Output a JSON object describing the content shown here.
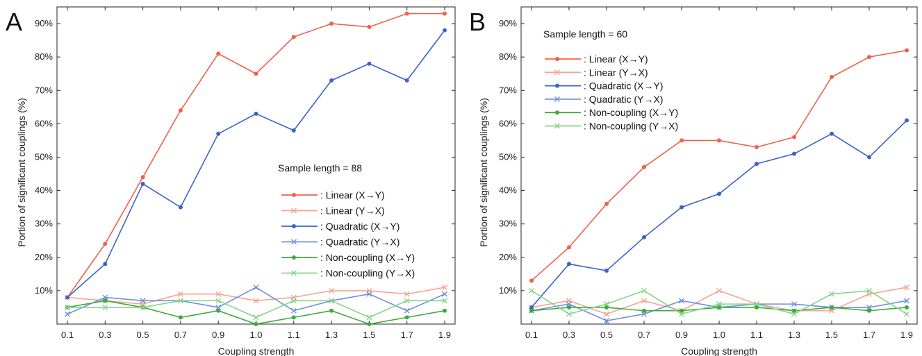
{
  "chart_data": [
    {
      "panel_label": "A",
      "type": "line",
      "xlabel": "Coupling strength",
      "ylabel": "Portion of significant couplings (%)",
      "x": [
        0.1,
        0.3,
        0.5,
        0.7,
        0.9,
        1.0,
        1.1,
        1.3,
        1.5,
        1.7,
        1.9
      ],
      "x_tick_labels": [
        "0.1",
        "0.3",
        "0.5",
        "0.7",
        "0.9",
        "1.0",
        "1.1",
        "1.3",
        "1.5",
        "1.7",
        "1.9"
      ],
      "ylim": [
        0,
        95
      ],
      "y_ticks": [
        10,
        20,
        30,
        40,
        50,
        60,
        70,
        80,
        90
      ],
      "y_tick_labels": [
        "10%",
        "20%",
        "30%",
        "40%",
        "50%",
        "60%",
        "70%",
        "80%",
        "90%"
      ],
      "grid": false,
      "legend_title": "Sample length = 88",
      "legend_position": "center-right",
      "series": [
        {
          "name": ": Linear (X→Y)",
          "color": "#f0604a",
          "marker": "dot",
          "values": [
            8,
            24,
            44,
            64,
            81,
            75,
            86,
            90,
            89,
            93,
            93
          ]
        },
        {
          "name": ": Linear (Y→X)",
          "color": "#f7a48f",
          "marker": "x",
          "values": [
            8,
            7,
            6,
            9,
            9,
            7,
            8,
            10,
            10,
            9,
            11
          ]
        },
        {
          "name": ": Quadratic (X→Y)",
          "color": "#3a62c8",
          "marker": "dot",
          "values": [
            8,
            18,
            42,
            35,
            57,
            63,
            58,
            73,
            78,
            73,
            88
          ]
        },
        {
          "name": ": Quadratic (Y→X)",
          "color": "#6f8fe0",
          "marker": "x",
          "values": [
            3,
            8,
            7,
            7,
            5,
            11,
            4,
            7,
            9,
            4,
            9
          ]
        },
        {
          "name": ": Non-coupling (X→Y)",
          "color": "#3caa3c",
          "marker": "dot",
          "values": [
            5,
            7,
            5,
            2,
            4,
            0,
            2,
            4,
            0,
            2,
            4
          ]
        },
        {
          "name": ": Non-coupling (Y→X)",
          "color": "#86d486",
          "marker": "x",
          "values": [
            5,
            5,
            5,
            7,
            7,
            2,
            7,
            7,
            2,
            7,
            7
          ]
        }
      ]
    },
    {
      "panel_label": "B",
      "type": "line",
      "xlabel": "Coupling strength",
      "ylabel": "Portion of significant couplings (%)",
      "x": [
        0.1,
        0.3,
        0.5,
        0.7,
        0.9,
        1.0,
        1.1,
        1.3,
        1.5,
        1.7,
        1.9
      ],
      "x_tick_labels": [
        "0.1",
        "0.3",
        "0.5",
        "0.7",
        "0.9",
        "1.0",
        "1.1",
        "1.3",
        "1.5",
        "1.7",
        "1.9"
      ],
      "ylim": [
        0,
        95
      ],
      "y_ticks": [
        10,
        20,
        30,
        40,
        50,
        60,
        70,
        80,
        90
      ],
      "y_tick_labels": [
        "10%",
        "20%",
        "30%",
        "40%",
        "50%",
        "60%",
        "70%",
        "80%",
        "90%"
      ],
      "grid": false,
      "legend_title": "Sample length = 60",
      "legend_position": "top-left",
      "series": [
        {
          "name": ": Linear (X→Y)",
          "color": "#f0604a",
          "marker": "dot",
          "values": [
            13,
            23,
            36,
            47,
            55,
            55,
            53,
            56,
            74,
            80,
            82
          ]
        },
        {
          "name": ": Linear (Y→X)",
          "color": "#f7a48f",
          "marker": "x",
          "values": [
            5,
            7,
            3,
            7,
            4,
            10,
            6,
            4,
            4,
            9,
            11
          ]
        },
        {
          "name": ": Quadratic (X→Y)",
          "color": "#3a62c8",
          "marker": "dot",
          "values": [
            5,
            18,
            16,
            26,
            35,
            39,
            48,
            51,
            57,
            50,
            61
          ]
        },
        {
          "name": ": Quadratic (Y→X)",
          "color": "#6f8fe0",
          "marker": "x",
          "values": [
            4,
            6,
            1,
            3,
            7,
            5,
            6,
            6,
            5,
            5,
            7
          ]
        },
        {
          "name": ": Non-coupling (X→Y)",
          "color": "#3caa3c",
          "marker": "dot",
          "values": [
            4,
            5,
            5,
            4,
            4,
            5,
            5,
            4,
            5,
            4,
            5
          ]
        },
        {
          "name": ": Non-coupling (Y→X)",
          "color": "#86d486",
          "marker": "x",
          "values": [
            10,
            3,
            6,
            10,
            3,
            6,
            6,
            3,
            9,
            10,
            3
          ]
        }
      ]
    }
  ]
}
